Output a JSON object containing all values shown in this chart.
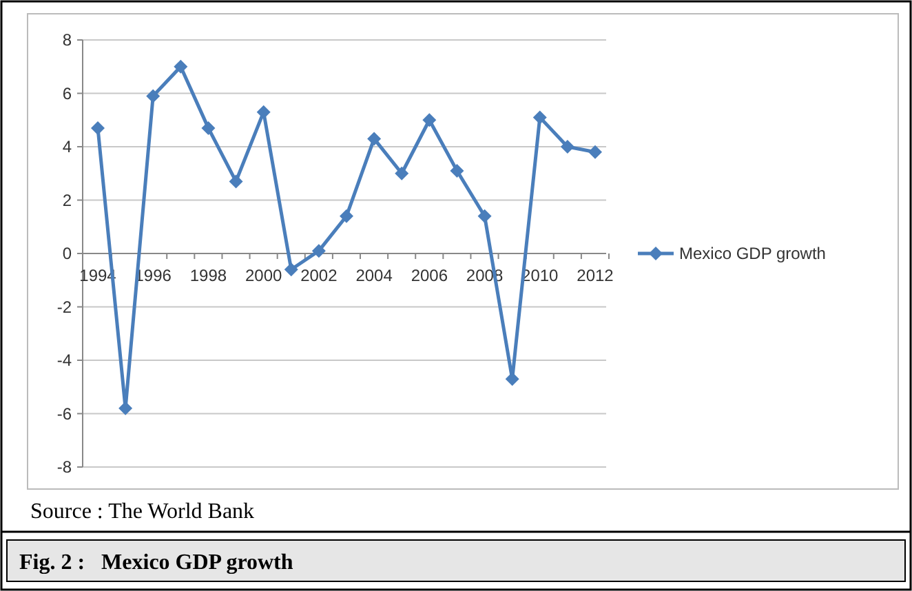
{
  "chart_data": {
    "type": "line",
    "title": "Fig. 2 :   Mexico GDP growth",
    "annotations": [
      "Source : The World Bank"
    ],
    "categories": [
      "1994",
      null,
      "1996",
      null,
      "1998",
      null,
      "2000",
      null,
      "2002",
      null,
      "2004",
      null,
      "2006",
      null,
      "2008",
      null,
      "2010",
      null,
      "2012"
    ],
    "series": [
      {
        "name": "Mexico GDP growth",
        "color": "#4a7ebb",
        "values": [
          4.7,
          -5.8,
          5.9,
          7.0,
          4.7,
          2.7,
          5.3,
          -0.6,
          0.1,
          1.4,
          4.3,
          3.0,
          5.0,
          3.1,
          1.4,
          -4.7,
          5.1,
          4.0,
          3.8
        ]
      }
    ],
    "ylim": [
      -8,
      8
    ],
    "yticks": [
      -8,
      -6,
      -4,
      -2,
      0,
      2,
      4,
      6,
      8
    ],
    "grid": "y",
    "legend": "right",
    "marker": "diamond",
    "line_style": "solid"
  }
}
